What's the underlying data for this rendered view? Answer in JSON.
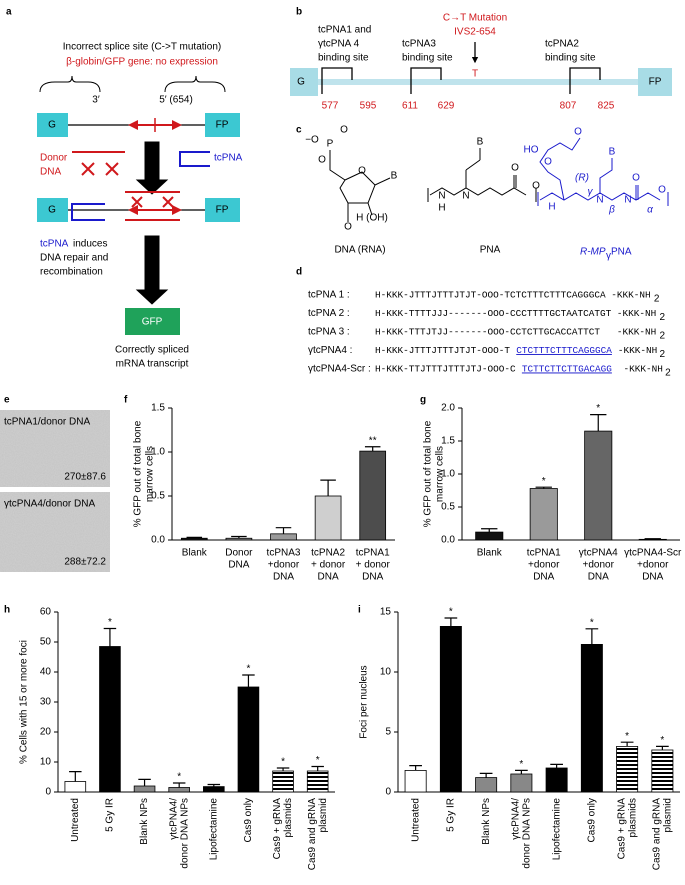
{
  "panel_labels": [
    "a",
    "b",
    "c",
    "d",
    "e",
    "f",
    "g",
    "h",
    "i"
  ],
  "panel_a": {
    "splice_line": "Incorrect splice site (C->T mutation)",
    "gene_line": "β-globin/GFP gene: no expression",
    "end3": "3′",
    "end5": "5′ (654)",
    "box_left": "G",
    "box_right": "FP",
    "donor": [
      "Donor",
      "DNA"
    ],
    "tcpna": "tcPNA",
    "caption_word": "tcPNA",
    "caption_rest": "induces",
    "caption_lines": [
      "DNA repair and",
      "recombination"
    ],
    "gfp": "GFP",
    "result": [
      "Correctly spliced",
      "mRNA transcript"
    ]
  },
  "panel_b": {
    "mutation": [
      "C→T Mutation",
      "IVS2-654"
    ],
    "site1": [
      "tcPNA1 and",
      "γtcPNA 4",
      "binding site"
    ],
    "site3": [
      "tcPNA3",
      "binding site"
    ],
    "site2": [
      "tcPNA2",
      "binding site"
    ],
    "box_left": "G",
    "box_right": "FP",
    "base": "T",
    "positions": [
      577,
      595,
      611,
      629,
      807,
      825
    ]
  },
  "panel_c": {
    "names": [
      "DNA (RNA)",
      "PNA"
    ],
    "mp_name": [
      "R-MP",
      "γ",
      "PNA"
    ],
    "dna_atoms": [
      "−O",
      "P",
      "O",
      "O",
      "O",
      "B",
      "O",
      "H (OH)"
    ],
    "pna_atoms": [
      "B",
      "O",
      "N",
      "N",
      "H",
      "O"
    ],
    "mp_atoms": [
      "HO",
      "O",
      "O",
      "B",
      "O",
      "N",
      "H",
      "(R)",
      "γ",
      "β",
      "N",
      "α",
      "O"
    ]
  },
  "panel_d": {
    "rows": [
      {
        "name": "tcPNA 1 :",
        "sequence": [
          "H-KKK-JTTTJTTTJTJT-OOO-TCTCTTTCTTTCAGGGCA -KKK-NH"
        ]
      },
      {
        "name": "tcPNA 2 :",
        "sequence": [
          "H-KKK-TTTTJJJ-------OOO-CCCTTTTGCTAATCATGT -KKK-NH"
        ]
      },
      {
        "name": "tcPNA 3 :",
        "sequence": [
          "H-KKK-TTTJTJJ-------OOO-CCTCTTGCACCATTCT   -KKK-NH"
        ]
      },
      {
        "name": "γtcPNA4 :",
        "sequence": [
          "H-KKK-JTTTJTTTJTJT-OOO-T ",
          "CTCTTTCTTTCAGGGCA",
          " -KKK-NH"
        ]
      },
      {
        "name": "γtcPNA4-Scr :",
        "sequence": [
          "H-KKK-TTJTTTJTTTJTJ-OOO-C ",
          "TCTTCTTCTTGACAGG",
          "  -KKK-NH"
        ]
      }
    ],
    "subscript": "2"
  },
  "panel_e": {
    "images": [
      {
        "label": "tcPNA1/donor DNA",
        "stat": "270±87.6"
      },
      {
        "label": "γtcPNA4/donor DNA",
        "stat": "288±72.2"
      }
    ]
  },
  "chart_data": [
    {
      "type": "bar",
      "ylabel": [
        "% GFP out of total bone",
        "marrow cells"
      ],
      "categories": [
        [
          "Blank"
        ],
        [
          "Donor",
          "DNA"
        ],
        [
          "tcPNA3",
          "+donor",
          "DNA"
        ],
        [
          "tcPNA2",
          "+ donor",
          "DNA"
        ],
        [
          "tcPNA1",
          "+ donor",
          "DNA"
        ]
      ],
      "values": [
        0.02,
        0.02,
        0.07,
        0.5,
        1.01
      ],
      "errors": [
        0.01,
        0.02,
        0.07,
        0.18,
        0.05
      ],
      "stars": [
        null,
        null,
        null,
        null,
        "**"
      ],
      "fills": [
        "#1a1a1a",
        "#8c8c8c",
        "#9a9a9a",
        "#cfcfcf",
        "#4d4d4d"
      ],
      "ylim": [
        0,
        1.5
      ],
      "yticks": [
        {
          "value": 0,
          "label": "0.0"
        },
        0.5,
        {
          "value": 1,
          "label": "1.0"
        },
        1.5
      ]
    },
    {
      "type": "bar",
      "ylabel": [
        "% GFP out of total bone",
        "marrow cells"
      ],
      "categories": [
        [
          "Blank"
        ],
        [
          "tcPNA1",
          "+donor",
          "DNA"
        ],
        [
          "γtcPNA4",
          "+donor",
          "DNA"
        ],
        [
          "γtcPNA4-Scr",
          "+donor",
          "DNA"
        ]
      ],
      "values": [
        0.12,
        0.78,
        1.65,
        0.01
      ],
      "errors": [
        0.05,
        0.02,
        0.25,
        0.01
      ],
      "stars": [
        null,
        "*",
        "*",
        null
      ],
      "fills": [
        "#111111",
        "#9a9a9a",
        "#666666",
        "#cccccc"
      ],
      "ylim": [
        0,
        2
      ],
      "yticks": [
        {
          "value": 0,
          "label": "0.0"
        },
        0.5,
        {
          "value": 1,
          "label": "1.0"
        },
        1.5,
        {
          "value": 2,
          "label": "2.0"
        }
      ]
    },
    {
      "type": "bar",
      "ylabel": [
        "% Cells with 15 or more foci"
      ],
      "categories": [
        [
          "Untreated"
        ],
        [
          "5 Gy IR"
        ],
        [
          "Blank NPs"
        ],
        [
          "γtcPNA4/",
          "donor DNA NPs"
        ],
        [
          "Lipofectamine"
        ],
        [
          "Cas9 only"
        ],
        [
          "Cas9 + gRNA",
          "plasmids"
        ],
        [
          "Cas9 and gRNA",
          "plasmid"
        ]
      ],
      "values": [
        3.5,
        48.5,
        2,
        1.5,
        1.8,
        35,
        7,
        7
      ],
      "errors": [
        3.3,
        6,
        2.2,
        1.5,
        0.7,
        4,
        1,
        1.5
      ],
      "stars": [
        null,
        "*",
        null,
        "*",
        null,
        "*",
        "*",
        "*"
      ],
      "fills": [
        "#ffffff",
        "#000000",
        "#888888",
        "#888888",
        "#000000",
        "#000000",
        "hatched",
        "hatched"
      ],
      "ylim": [
        0,
        60
      ],
      "yticks": [
        0,
        10,
        20,
        30,
        40,
        50,
        60
      ]
    },
    {
      "type": "bar",
      "ylabel": [
        "Foci per nucleus"
      ],
      "categories": [
        [
          "Untreated"
        ],
        [
          "5 Gy IR"
        ],
        [
          "Blank NPs"
        ],
        [
          "γtcPNA4/",
          "donor DNA NPs"
        ],
        [
          "Lipofectamine"
        ],
        [
          "Cas9 only"
        ],
        [
          "Cas9 + gRNA",
          "plasmids"
        ],
        [
          "Cas9 and gRNA",
          "plasmid"
        ]
      ],
      "values": [
        1.8,
        13.8,
        1.2,
        1.5,
        2,
        12.3,
        3.8,
        3.5
      ],
      "errors": [
        0.4,
        0.7,
        0.35,
        0.3,
        0.3,
        1.3,
        0.35,
        0.3
      ],
      "stars": [
        null,
        "*",
        null,
        "*",
        null,
        "*",
        "*",
        "*"
      ],
      "fills": [
        "#ffffff",
        "#000000",
        "#888888",
        "#888888",
        "#000000",
        "#000000",
        "hatched",
        "hatched"
      ],
      "ylim": [
        0,
        15
      ],
      "yticks": [
        0,
        5,
        10,
        15
      ]
    }
  ]
}
